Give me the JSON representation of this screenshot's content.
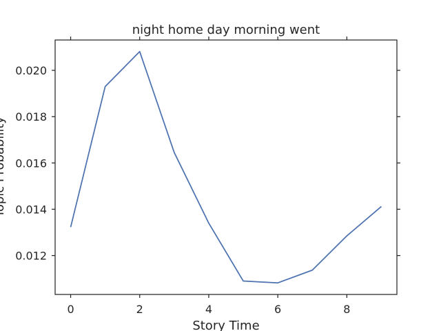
{
  "chart_data": {
    "type": "line",
    "title": "night home day morning went",
    "xlabel": "Story Time",
    "ylabel": "Topic Probability",
    "x": [
      0,
      1,
      2,
      3,
      4,
      5,
      6,
      7,
      8,
      9
    ],
    "series": [
      {
        "color": "#4c72b0",
        "values": [
          0.01323,
          0.0193,
          0.02081,
          0.01645,
          0.0134,
          0.0109,
          0.01082,
          0.01137,
          0.01285,
          0.01412
        ]
      }
    ],
    "xticks": [
      0,
      2,
      4,
      6,
      8
    ],
    "xtick_labels": [
      "0",
      "2",
      "4",
      "6",
      "8"
    ],
    "yticks": [
      0.012,
      0.014,
      0.016,
      0.018,
      0.02
    ],
    "ytick_labels": [
      "0.012",
      "0.014",
      "0.016",
      "0.018",
      "0.020"
    ],
    "xlim": [
      -0.45,
      9.45
    ],
    "ylim": [
      0.01032,
      0.02131
    ],
    "grid": false,
    "ticks_on_all_sides": true
  }
}
